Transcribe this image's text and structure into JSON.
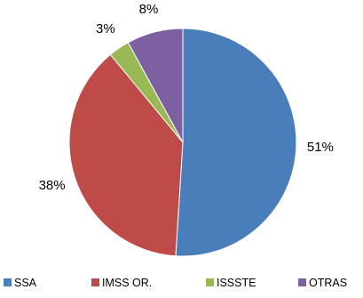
{
  "chart_data": {
    "type": "pie",
    "title": "",
    "categories": [
      "SSA",
      "IMSS OR.",
      "ISSSTE",
      "OTRAS"
    ],
    "values": [
      51,
      38,
      3,
      8
    ],
    "labels": [
      "51%",
      "38%",
      "3%",
      "8%"
    ],
    "colors": [
      "#4a7ebb",
      "#be4b48",
      "#98b954",
      "#7d60a0"
    ],
    "legend": "bottom"
  }
}
